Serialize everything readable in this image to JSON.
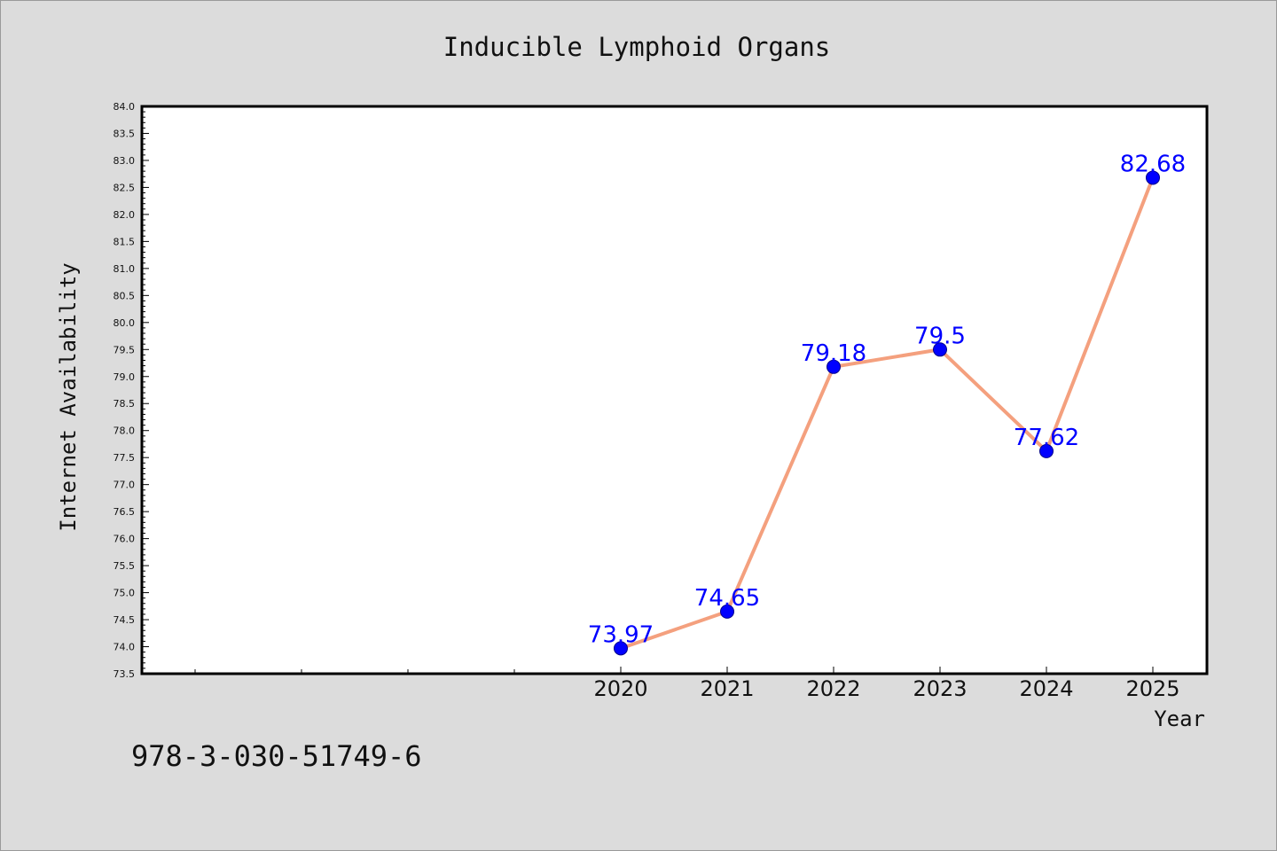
{
  "chart_data": {
    "type": "line",
    "title": "Inducible Lymphoid Organs",
    "xlabel": "Year",
    "ylabel": "Internet Availability",
    "x": [
      "2020",
      "2021",
      "2022",
      "2023",
      "2024",
      "2025"
    ],
    "series": [
      {
        "values": [
          73.97,
          74.65,
          79.18,
          79.5,
          77.62,
          82.68
        ]
      }
    ],
    "data_labels": [
      "73.97",
      "74.65",
      "79.18",
      "79.5",
      "77.62",
      "82.68"
    ],
    "ylim": [
      73.5,
      84.0
    ],
    "y_ticks": [
      "73.5",
      "74.0",
      "74.5",
      "75.0",
      "75.5",
      "76.0",
      "76.5",
      "77.0",
      "77.5",
      "78.0",
      "78.5",
      "79.0",
      "79.5",
      "80.0",
      "80.5",
      "81.0",
      "81.5",
      "82.0",
      "82.5",
      "83.0",
      "83.5",
      "84.0"
    ],
    "grid": false,
    "line_color": "#f4a07e",
    "marker_color": "#0000ff",
    "label_color": "#0000ff"
  },
  "footer_text": "978-3-030-51749-6"
}
